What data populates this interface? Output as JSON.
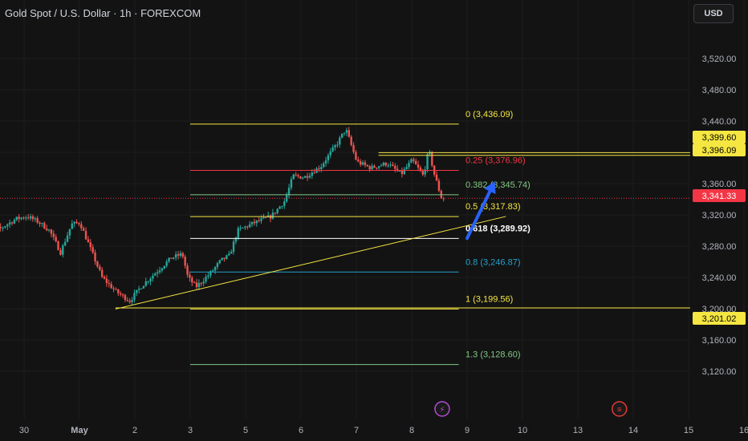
{
  "header": {
    "title": "Gold Spot / U.S. Dollar · 1h · FOREXCOM",
    "currency_button": "USD"
  },
  "price_tags": [
    {
      "label": "3,399.60",
      "value": 3399.6,
      "bg": "#f5e642",
      "fg": "#000000"
    },
    {
      "label": "3,396.09",
      "value": 3396.09,
      "bg": "#f5e642",
      "fg": "#000000"
    },
    {
      "label": "3,341.33",
      "value": 3341.33,
      "bg": "#f23645",
      "fg": "#ffffff"
    },
    {
      "label": "3,201.02",
      "value": 3201.02,
      "bg": "#f5e642",
      "fg": "#000000"
    }
  ],
  "chart_data": {
    "type": "candlestick",
    "y_axis": {
      "ticks": [
        "3,120.00",
        "3,160.00",
        "3,200.00",
        "3,240.00",
        "3,280.00",
        "3,320.00",
        "3,360.00",
        "3,400.00",
        "3,440.00",
        "3,480.00",
        "3,520.00"
      ],
      "tick_values": [
        3120,
        3160,
        3200,
        3240,
        3280,
        3320,
        3360,
        3400,
        3440,
        3480,
        3520
      ],
      "ylim": [
        3095,
        3545
      ]
    },
    "x_axis": {
      "ticks": [
        {
          "label": "30",
          "d": -1
        },
        {
          "label": "May",
          "d": 0
        },
        {
          "label": "2",
          "d": 1
        },
        {
          "label": "3",
          "d": 2
        },
        {
          "label": "5",
          "d": 3
        },
        {
          "label": "6",
          "d": 4
        },
        {
          "label": "7",
          "d": 5
        },
        {
          "label": "8",
          "d": 6
        },
        {
          "label": "9",
          "d": 7
        },
        {
          "label": "10",
          "d": 8
        },
        {
          "label": "13",
          "d": 9
        },
        {
          "label": "14",
          "d": 10
        },
        {
          "label": "15",
          "d": 11
        },
        {
          "label": "16",
          "d": 12
        }
      ]
    },
    "fibonacci": {
      "start_d": 2.0,
      "end_d": 6.85,
      "levels": [
        {
          "label": "0 (3,436.09)",
          "value": 3436.09,
          "color": "#f5e642"
        },
        {
          "label": "0.25 (3,376.96)",
          "value": 3376.96,
          "color": "#f23645"
        },
        {
          "label": "0.382 (3,345.74)",
          "value": 3345.74,
          "color": "#81c784"
        },
        {
          "label": "0.5 (3,317.83)",
          "value": 3317.83,
          "color": "#f5e642"
        },
        {
          "label": "0.618 (3,289.92)",
          "value": 3289.92,
          "color": "#ffffff"
        },
        {
          "label": "0.8 (3,246.87)",
          "value": 3246.87,
          "color": "#26a0c9"
        },
        {
          "label": "1 (3,199.56)",
          "value": 3199.56,
          "color": "#f5e642"
        },
        {
          "label": "1.3 (3,128.60)",
          "value": 3128.6,
          "color": "#81c784"
        }
      ]
    },
    "horizontal_lines": [
      {
        "value": 3399.6,
        "color": "#f5e642",
        "start_d": 5.4
      },
      {
        "value": 3396.09,
        "color": "#f5e642",
        "start_d": 5.4
      },
      {
        "value": 3201.02,
        "color": "#f5e642",
        "start_d": 0.65
      }
    ],
    "last_price_line": {
      "value": 3341.33,
      "color": "#f23645"
    },
    "trendline": {
      "from": {
        "d": 0.65,
        "v": 3199.56
      },
      "to": {
        "d": 7.7,
        "v": 3318
      }
    },
    "arrow": {
      "from": {
        "d": 7.0,
        "v": 3290
      },
      "to": {
        "d": 7.5,
        "v": 3363
      },
      "color": "#2962ff"
    },
    "candles": {
      "start_d": -1.8,
      "end_d": 6.58,
      "anchors": [
        {
          "d": -1.8,
          "v": 3305
        },
        {
          "d": -1.4,
          "v": 3302
        },
        {
          "d": -1.1,
          "v": 3315
        },
        {
          "d": -0.9,
          "v": 3318
        },
        {
          "d": -0.7,
          "v": 3311
        },
        {
          "d": -0.5,
          "v": 3300
        },
        {
          "d": -0.3,
          "v": 3272
        },
        {
          "d": -0.1,
          "v": 3308
        },
        {
          "d": 0.05,
          "v": 3310
        },
        {
          "d": 0.25,
          "v": 3275
        },
        {
          "d": 0.45,
          "v": 3240
        },
        {
          "d": 0.7,
          "v": 3222
        },
        {
          "d": 0.95,
          "v": 3210
        },
        {
          "d": 1.15,
          "v": 3228
        },
        {
          "d": 1.4,
          "v": 3245
        },
        {
          "d": 1.7,
          "v": 3265
        },
        {
          "d": 1.9,
          "v": 3270
        },
        {
          "d": 2.0,
          "v": 3240
        },
        {
          "d": 2.15,
          "v": 3228
        },
        {
          "d": 2.4,
          "v": 3245
        },
        {
          "d": 2.6,
          "v": 3262
        },
        {
          "d": 2.75,
          "v": 3268
        },
        {
          "d": 2.9,
          "v": 3300
        },
        {
          "d": 3.2,
          "v": 3310
        },
        {
          "d": 3.5,
          "v": 3318
        },
        {
          "d": 3.75,
          "v": 3338
        },
        {
          "d": 3.9,
          "v": 3370
        },
        {
          "d": 4.1,
          "v": 3368
        },
        {
          "d": 4.4,
          "v": 3382
        },
        {
          "d": 4.7,
          "v": 3412
        },
        {
          "d": 4.85,
          "v": 3430
        },
        {
          "d": 5.05,
          "v": 3388
        },
        {
          "d": 5.3,
          "v": 3380
        },
        {
          "d": 5.6,
          "v": 3386
        },
        {
          "d": 5.85,
          "v": 3372
        },
        {
          "d": 6.05,
          "v": 3390
        },
        {
          "d": 6.25,
          "v": 3370
        },
        {
          "d": 6.35,
          "v": 3403
        },
        {
          "d": 6.45,
          "v": 3372
        },
        {
          "d": 6.58,
          "v": 3341
        }
      ]
    }
  },
  "icons": [
    {
      "name": "lightning-event-icon",
      "d": 6.55,
      "glyph": "⚡",
      "color": "#b04cd4"
    },
    {
      "name": "us-flag-event-icon",
      "d": 9.75,
      "glyph": "≡",
      "color": "#e53935"
    }
  ]
}
